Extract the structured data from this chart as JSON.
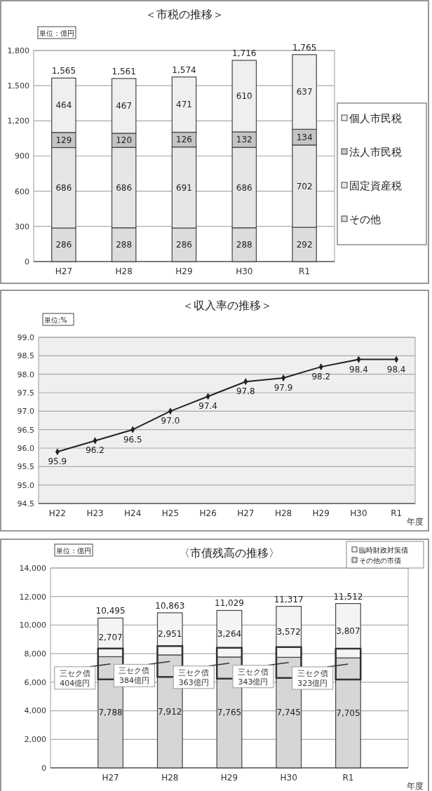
{
  "chart_data": [
    {
      "type": "bar",
      "title": "＜市税の推移＞",
      "annotations": [
        "単位：億円"
      ],
      "categories": [
        "H27",
        "H28",
        "H29",
        "H30",
        "R1"
      ],
      "stacked": true,
      "data_labels": true,
      "legend": "right",
      "grid": "y",
      "series": [
        {
          "name": "その他",
          "color": "#dcdcdc",
          "values": [
            286,
            288,
            286,
            288,
            292
          ]
        },
        {
          "name": "固定資産税",
          "color": "#e6e6e6",
          "values": [
            686,
            686,
            691,
            686,
            702
          ]
        },
        {
          "name": "法人市民税",
          "color": "#c4c4c4",
          "values": [
            129,
            120,
            126,
            132,
            134
          ]
        },
        {
          "name": "個人市民税",
          "color": "#efefef",
          "values": [
            464,
            467,
            471,
            610,
            637
          ]
        }
      ],
      "totals": [
        "1,565",
        "1,561",
        "1,574",
        "1,716",
        "1,765"
      ],
      "ylim": [
        0,
        1800
      ],
      "yticks": [
        0,
        300,
        600,
        900,
        {
          "value": 1200,
          "label": "1,200"
        },
        {
          "value": 1500,
          "label": "1,500"
        },
        {
          "value": 1800,
          "label": "1,800"
        }
      ]
    },
    {
      "type": "line",
      "title": "＜収入率の推移＞",
      "xlabel": "年度",
      "annotations": [
        "単位:%"
      ],
      "categories": [
        "H22",
        "H23",
        "H24",
        "H25",
        "H26",
        "H27",
        "H28",
        "H29",
        "H30",
        "R1"
      ],
      "grid": "y",
      "marker": "diamond",
      "series": [
        {
          "color": "#222222",
          "values": [
            95.9,
            96.2,
            96.5,
            97.0,
            97.4,
            97.8,
            97.9,
            98.2,
            98.4,
            98.4
          ]
        }
      ],
      "value_labels": [
        "95.9",
        "96.2",
        "96.5",
        "97.0",
        "97.4",
        "97.8",
        "97.9",
        "98.2",
        "98.4",
        "98.4"
      ],
      "ylim": [
        94.5,
        99
      ],
      "yticks": [
        94.5,
        {
          "value": 95,
          "label": "95.0"
        },
        95.5,
        {
          "value": 96,
          "label": "96.0"
        },
        96.5,
        {
          "value": 97,
          "label": "97.0"
        },
        97.5,
        {
          "value": 98,
          "label": "98.0"
        },
        98.5,
        {
          "value": 99,
          "label": "99.0"
        }
      ]
    },
    {
      "type": "bar",
      "title": "〈市債残高の推移〉",
      "xlabel": "年度",
      "categories": [
        "H27",
        "H28",
        "H29",
        "H30",
        "R1"
      ],
      "stacked": true,
      "legend": "top right",
      "grid": "y",
      "series": [
        {
          "name": "その他の市債",
          "color": "#d6d6d6",
          "values": [
            7788,
            7912,
            7765,
            7745,
            7705
          ],
          "value_labels": [
            "7,788",
            "7,912",
            "7,765",
            "7,745",
            "7,705"
          ]
        },
        {
          "name": "臨時財政対策債",
          "color": "#f4f4f4",
          "values": [
            2707,
            2951,
            3264,
            3572,
            3807
          ],
          "value_labels": [
            "2,707",
            "2,951",
            "3,264",
            "3,572",
            "3,807"
          ]
        }
      ],
      "totals": [
        "10,495",
        "10,863",
        "11,029",
        "11,317",
        "11,512"
      ],
      "annotations": [
        "単位：億円",
        {
          "text": "三セク債\n404億円",
          "x": "H27",
          "y": 7280
        },
        {
          "text": "三セク債\n384億円",
          "x": "H28",
          "y": 7450
        },
        {
          "text": "三セク債\n363億円",
          "x": "H29",
          "y": 7330
        },
        {
          "text": "三セク債\n343億円",
          "x": "H30",
          "y": 7380
        },
        {
          "text": "三セク債\n323億円",
          "x": "R1",
          "y": 7270
        }
      ],
      "ylim": [
        0,
        14000
      ],
      "yticks": [
        0,
        {
          "value": 2000,
          "label": "2,000"
        },
        {
          "value": 4000,
          "label": "4,000"
        },
        {
          "value": 6000,
          "label": "6,000"
        },
        {
          "value": 8000,
          "label": "8,000"
        },
        {
          "value": 10000,
          "label": "10,000"
        },
        {
          "value": 12000,
          "label": "12,000"
        },
        {
          "value": 14000,
          "label": "14,000"
        }
      ]
    }
  ]
}
